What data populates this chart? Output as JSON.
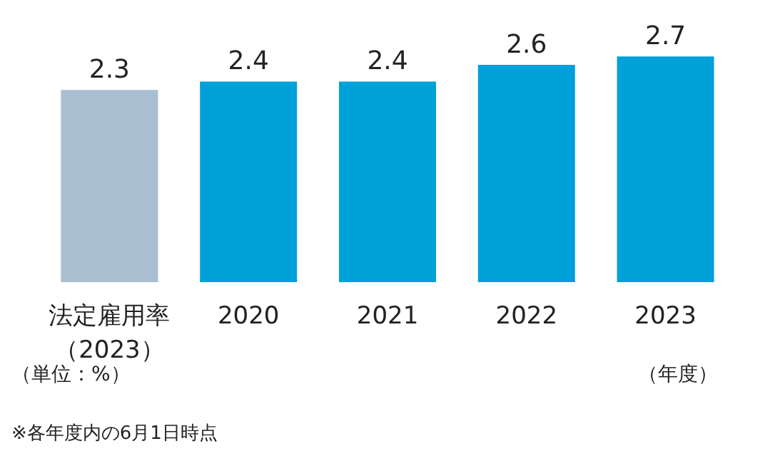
{
  "chart_data": {
    "type": "bar",
    "categories": [
      "法定雇用率（2023）",
      "2020",
      "2021",
      "2022",
      "2023"
    ],
    "values": [
      2.3,
      2.4,
      2.4,
      2.6,
      2.7
    ],
    "colors": [
      "#a9bfd1",
      "#00a0d9",
      "#00a0d9",
      "#00a0d9",
      "#00a0d9"
    ],
    "data_labels": true,
    "ylabel": "（単位：%）",
    "xlabel": "（年度）",
    "annotations": [
      "※各年度内の6月1日時点"
    ]
  }
}
